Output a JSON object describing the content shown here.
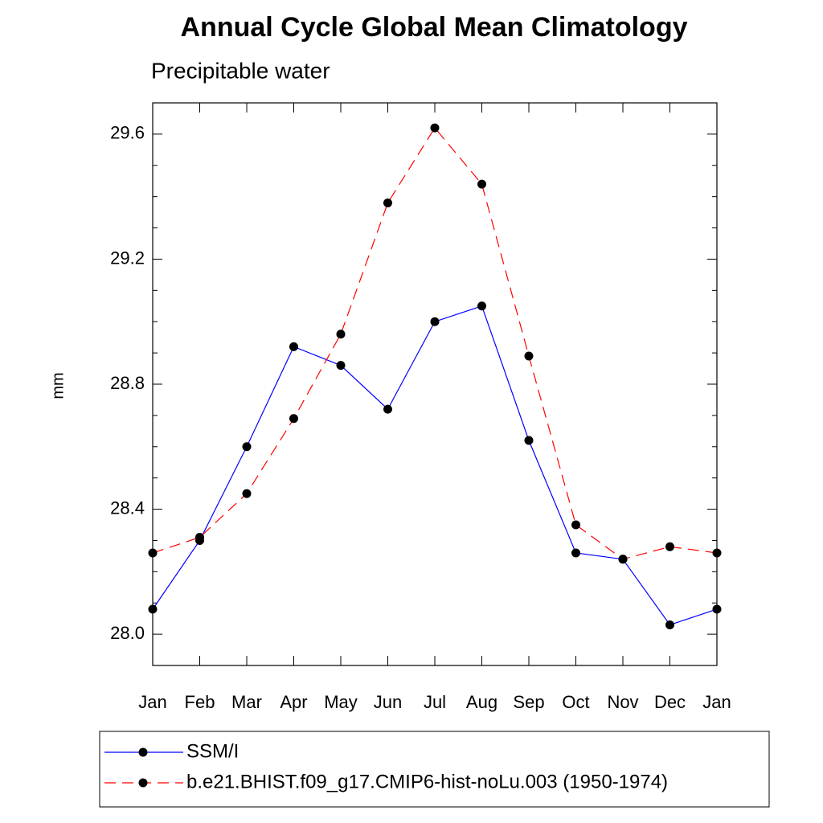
{
  "chart_data": {
    "type": "line",
    "title": "Annual Cycle Global Mean Climatology",
    "subtitle": "Precipitable water",
    "y_label": "mm",
    "categories": [
      "Jan",
      "Feb",
      "Mar",
      "Apr",
      "May",
      "Jun",
      "Jul",
      "Aug",
      "Sep",
      "Oct",
      "Nov",
      "Dec",
      "Jan"
    ],
    "series": [
      {
        "name": "SSM/I",
        "color": "#0000ff",
        "dash": false,
        "values": [
          28.08,
          28.3,
          28.6,
          28.92,
          28.86,
          28.72,
          29.0,
          29.05,
          28.62,
          28.26,
          28.24,
          28.03,
          28.08
        ]
      },
      {
        "name": "b.e21.BHIST.f09_g17.CMIP6-hist-noLu.003 (1950-1974)",
        "color": "#ff0000",
        "dash": true,
        "values": [
          28.26,
          28.31,
          28.45,
          28.69,
          28.96,
          29.38,
          29.62,
          29.44,
          28.89,
          28.35,
          28.24,
          28.28,
          28.26
        ]
      }
    ],
    "ylim": [
      27.9,
      29.7
    ],
    "yticks": [
      {
        "value": 28.0,
        "label": "28.0"
      },
      28.4,
      28.8,
      29.2,
      29.6
    ],
    "yminorticks": [
      27.9,
      28.1,
      28.2,
      28.3,
      28.5,
      28.6,
      28.7,
      28.9,
      29.0,
      29.1,
      29.3,
      29.4,
      29.5,
      29.7
    ]
  }
}
